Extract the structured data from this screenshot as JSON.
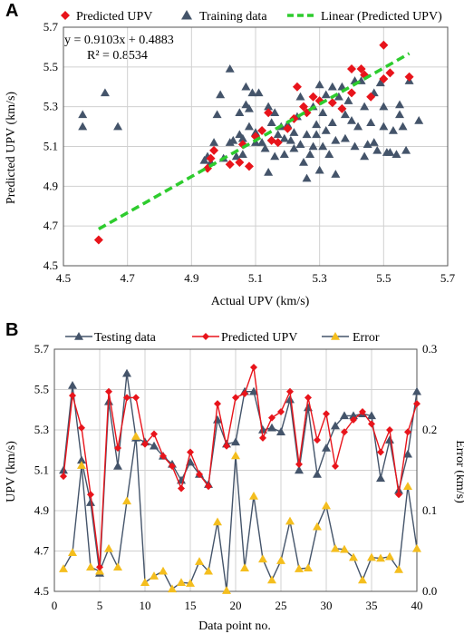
{
  "panel_a": {
    "label": "A",
    "equation": "y = 0.9103x + 0.4883",
    "r2": "R² = 0.8534"
  },
  "panel_b": {
    "label": "B"
  },
  "colors": {
    "predicted": "#e8141b",
    "training": "#44546a",
    "linear": "#2ecc2e",
    "error": "#f4be1e",
    "grid": "#d0d0d0"
  },
  "chart_data": [
    {
      "type": "scatter",
      "xlabel": "Actual UPV (km/s)",
      "ylabel": "Predicted UPV (km/s)",
      "xlim": [
        4.5,
        5.7
      ],
      "ylim": [
        4.5,
        5.7
      ],
      "xticks": [
        "4.5",
        "4.7",
        "4.9",
        "5.1",
        "5.3",
        "5.5",
        "5.7"
      ],
      "yticks": [
        "4.5",
        "4.7",
        "4.9",
        "5.1",
        "5.3",
        "5.5",
        "5.7"
      ],
      "legend": "top",
      "series": [
        {
          "name": "Predicted UPV",
          "marker": "diamond",
          "points": [
            [
              4.61,
              4.63
            ],
            [
              4.95,
              4.99
            ],
            [
              4.96,
              5.04
            ],
            [
              4.97,
              5.08
            ],
            [
              5.02,
              5.01
            ],
            [
              5.05,
              5.02
            ],
            [
              5.06,
              5.11
            ],
            [
              5.08,
              5.0
            ],
            [
              5.1,
              5.15
            ],
            [
              5.12,
              5.18
            ],
            [
              5.14,
              5.27
            ],
            [
              5.15,
              5.13
            ],
            [
              5.17,
              5.12
            ],
            [
              5.2,
              5.19
            ],
            [
              5.22,
              5.24
            ],
            [
              5.23,
              5.4
            ],
            [
              5.25,
              5.3
            ],
            [
              5.26,
              5.27
            ],
            [
              5.28,
              5.35
            ],
            [
              5.3,
              5.33
            ],
            [
              5.34,
              5.32
            ],
            [
              5.37,
              5.29
            ],
            [
              5.4,
              5.37
            ],
            [
              5.4,
              5.49
            ],
            [
              5.43,
              5.49
            ],
            [
              5.44,
              5.46
            ],
            [
              5.46,
              5.35
            ],
            [
              5.5,
              5.61
            ],
            [
              5.5,
              5.44
            ],
            [
              5.52,
              5.47
            ],
            [
              5.58,
              5.45
            ]
          ]
        },
        {
          "name": "Training data",
          "marker": "triangle",
          "points": [
            [
              4.56,
              5.26
            ],
            [
              4.56,
              5.2
            ],
            [
              4.63,
              5.37
            ],
            [
              4.67,
              5.2
            ],
            [
              4.94,
              5.03
            ],
            [
              4.95,
              5.05
            ],
            [
              4.96,
              5.02
            ],
            [
              4.97,
              5.12
            ],
            [
              4.98,
              5.26
            ],
            [
              4.99,
              5.36
            ],
            [
              5.0,
              5.04
            ],
            [
              5.02,
              5.49
            ],
            [
              5.02,
              5.12
            ],
            [
              5.03,
              5.13
            ],
            [
              5.04,
              5.05
            ],
            [
              5.05,
              5.27
            ],
            [
              5.05,
              5.16
            ],
            [
              5.06,
              5.14
            ],
            [
              5.06,
              5.06
            ],
            [
              5.07,
              5.4
            ],
            [
              5.07,
              5.31
            ],
            [
              5.08,
              5.29
            ],
            [
              5.08,
              5.2
            ],
            [
              5.09,
              5.37
            ],
            [
              5.1,
              5.12
            ],
            [
              5.1,
              5.17
            ],
            [
              5.11,
              5.37
            ],
            [
              5.12,
              5.12
            ],
            [
              5.13,
              5.09
            ],
            [
              5.14,
              4.97
            ],
            [
              5.14,
              5.3
            ],
            [
              5.15,
              5.22
            ],
            [
              5.16,
              5.27
            ],
            [
              5.16,
              5.05
            ],
            [
              5.17,
              5.16
            ],
            [
              5.18,
              5.2
            ],
            [
              5.19,
              5.14
            ],
            [
              5.19,
              5.06
            ],
            [
              5.2,
              5.21
            ],
            [
              5.21,
              5.13
            ],
            [
              5.22,
              5.17
            ],
            [
              5.22,
              5.09
            ],
            [
              5.23,
              5.25
            ],
            [
              5.24,
              5.35
            ],
            [
              5.24,
              5.11
            ],
            [
              5.25,
              5.02
            ],
            [
              5.26,
              5.16
            ],
            [
              5.26,
              4.94
            ],
            [
              5.27,
              5.06
            ],
            [
              5.28,
              5.3
            ],
            [
              5.28,
              5.1
            ],
            [
              5.29,
              5.21
            ],
            [
              5.29,
              5.16
            ],
            [
              5.3,
              5.41
            ],
            [
              5.3,
              4.98
            ],
            [
              5.31,
              5.1
            ],
            [
              5.31,
              5.27
            ],
            [
              5.32,
              5.36
            ],
            [
              5.32,
              5.18
            ],
            [
              5.33,
              5.06
            ],
            [
              5.34,
              5.4
            ],
            [
              5.34,
              5.22
            ],
            [
              5.35,
              5.13
            ],
            [
              5.35,
              4.96
            ],
            [
              5.36,
              5.35
            ],
            [
              5.37,
              5.4
            ],
            [
              5.38,
              5.26
            ],
            [
              5.38,
              5.14
            ],
            [
              5.39,
              5.33
            ],
            [
              5.4,
              5.23
            ],
            [
              5.41,
              5.43
            ],
            [
              5.41,
              5.1
            ],
            [
              5.42,
              5.2
            ],
            [
              5.43,
              5.43
            ],
            [
              5.44,
              5.3
            ],
            [
              5.44,
              5.05
            ],
            [
              5.45,
              5.11
            ],
            [
              5.46,
              5.22
            ],
            [
              5.47,
              5.37
            ],
            [
              5.47,
              5.12
            ],
            [
              5.48,
              5.08
            ],
            [
              5.49,
              5.42
            ],
            [
              5.5,
              5.3
            ],
            [
              5.5,
              5.2
            ],
            [
              5.51,
              5.07
            ],
            [
              5.52,
              5.07
            ],
            [
              5.53,
              5.18
            ],
            [
              5.54,
              5.06
            ],
            [
              5.55,
              5.31
            ],
            [
              5.55,
              5.26
            ],
            [
              5.56,
              5.2
            ],
            [
              5.57,
              5.08
            ],
            [
              5.58,
              5.43
            ],
            [
              5.61,
              5.23
            ]
          ]
        }
      ],
      "trendline": {
        "name": "Linear (Predicted UPV)",
        "slope": 0.9103,
        "intercept": 0.4883,
        "x_range": [
          4.61,
          5.58
        ]
      }
    },
    {
      "type": "line",
      "xlabel": "Data point no.",
      "ylabel": "UPV (km/s)",
      "y2label": "Error (km/s)",
      "xlim": [
        0,
        40
      ],
      "ylim": [
        4.5,
        5.7
      ],
      "y2lim": [
        0,
        0.3
      ],
      "xticks": [
        "0",
        "5",
        "10",
        "15",
        "20",
        "25",
        "30",
        "35",
        "40"
      ],
      "yticks": [
        "4.5",
        "4.7",
        "4.9",
        "5.1",
        "5.3",
        "5.5",
        "5.7"
      ],
      "y2ticks": [
        "0.0",
        "0.1",
        "0.2",
        "0.3"
      ],
      "legend": "top",
      "x": [
        1,
        2,
        3,
        4,
        5,
        6,
        7,
        8,
        9,
        10,
        11,
        12,
        13,
        14,
        15,
        16,
        17,
        18,
        19,
        20,
        21,
        22,
        23,
        24,
        25,
        26,
        27,
        28,
        29,
        30,
        31,
        32,
        33,
        34,
        35,
        36,
        37,
        38,
        39,
        40
      ],
      "series": [
        {
          "name": "Testing data",
          "axis": "left",
          "marker": "triangle",
          "values": [
            5.1,
            5.52,
            5.15,
            4.94,
            4.59,
            5.44,
            5.12,
            5.58,
            5.26,
            5.24,
            5.22,
            5.17,
            5.13,
            5.05,
            5.14,
            5.08,
            5.03,
            5.35,
            5.23,
            5.24,
            5.49,
            5.49,
            5.3,
            5.31,
            5.29,
            5.45,
            5.1,
            5.41,
            5.08,
            5.21,
            5.32,
            5.37,
            5.37,
            5.38,
            5.37,
            5.06,
            5.25,
            5.0,
            5.18,
            5.49
          ]
        },
        {
          "name": "Predicted UPV",
          "axis": "left",
          "marker": "diamond",
          "values": [
            5.07,
            5.47,
            5.31,
            4.98,
            4.62,
            5.49,
            5.21,
            5.46,
            5.46,
            5.23,
            5.28,
            5.17,
            5.12,
            5.01,
            5.19,
            5.08,
            5.02,
            5.43,
            5.22,
            5.46,
            5.48,
            5.61,
            5.26,
            5.36,
            5.39,
            5.49,
            5.13,
            5.46,
            5.25,
            5.38,
            5.12,
            5.29,
            5.35,
            5.39,
            5.33,
            5.19,
            5.3,
            4.98,
            5.29,
            5.43
          ]
        },
        {
          "name": "Error",
          "axis": "right",
          "marker": "triangle",
          "values": [
            0.028,
            0.048,
            0.156,
            0.03,
            0.025,
            0.053,
            0.03,
            0.112,
            0.192,
            0.011,
            0.019,
            0.025,
            0.003,
            0.011,
            0.01,
            0.037,
            0.025,
            0.086,
            0.001,
            0.168,
            0.029,
            0.118,
            0.04,
            0.014,
            0.038,
            0.087,
            0.028,
            0.029,
            0.08,
            0.106,
            0.053,
            0.052,
            0.042,
            0.014,
            0.042,
            0.041,
            0.043,
            0.027,
            0.13,
            0.053
          ]
        }
      ]
    }
  ]
}
